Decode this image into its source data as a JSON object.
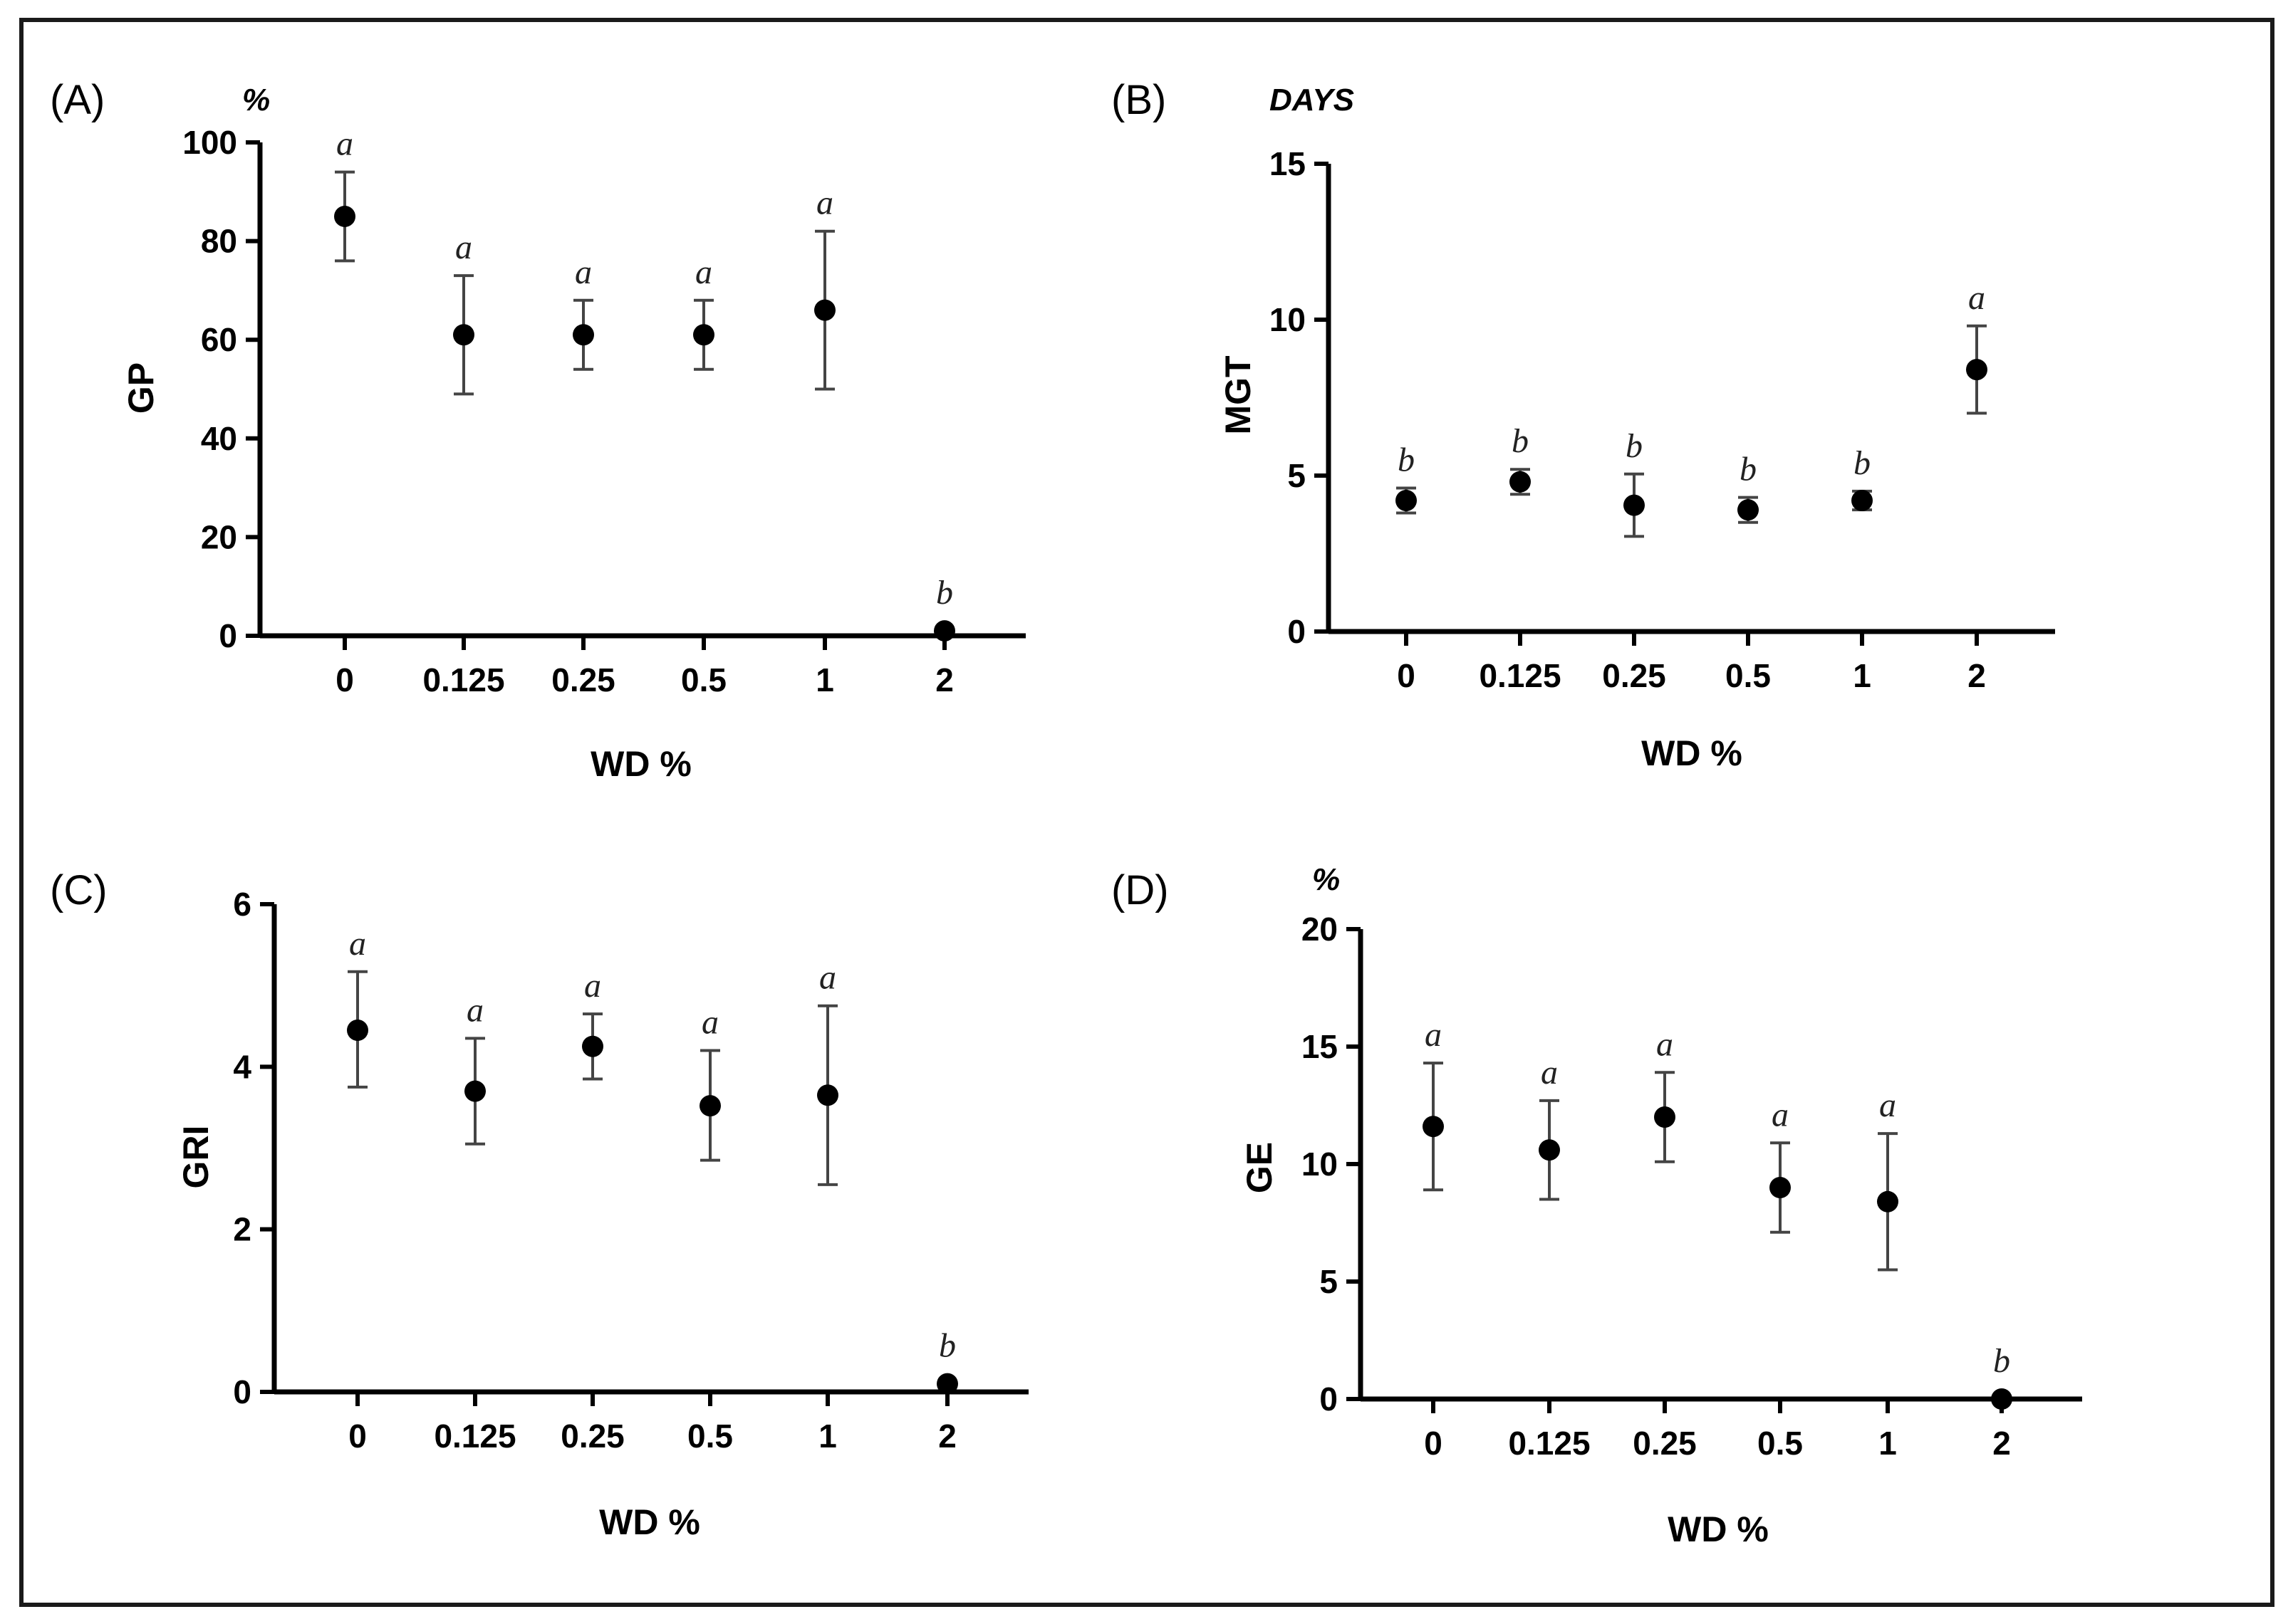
{
  "figure": {
    "border_color": "#1a1a1a"
  },
  "chart_data": [
    {
      "id": "A",
      "type": "scatter",
      "panel_label": "(A)",
      "unit": "%",
      "ylabel": "GP",
      "xlabel": "WD %",
      "categories": [
        "0",
        "0.125",
        "0.25",
        "0.5",
        "1",
        "2"
      ],
      "values": [
        85,
        61,
        61,
        61,
        66,
        1
      ],
      "error_low": [
        76,
        49,
        54,
        54,
        50,
        null
      ],
      "error_high": [
        94,
        73,
        68,
        68,
        82,
        null
      ],
      "letters": [
        "a",
        "a",
        "a",
        "a",
        "a",
        "b"
      ],
      "ylim": [
        0,
        100
      ],
      "yticks": [
        "0",
        "20",
        "40",
        "60",
        "80",
        "100"
      ],
      "grid": false
    },
    {
      "id": "B",
      "type": "scatter",
      "panel_label": "(B)",
      "unit": "DAYS",
      "ylabel": "MGT",
      "xlabel": "WD %",
      "categories": [
        "0",
        "0.125",
        "0.25",
        "0.5",
        "1",
        "2"
      ],
      "values": [
        4.2,
        4.8,
        4.05,
        3.9,
        4.2,
        8.4
      ],
      "error_low": [
        3.8,
        4.4,
        3.05,
        3.5,
        3.9,
        7.0
      ],
      "error_high": [
        4.6,
        5.2,
        5.05,
        4.3,
        4.5,
        9.8
      ],
      "letters": [
        "b",
        "b",
        "b",
        "b",
        "b",
        "a"
      ],
      "ylim": [
        0,
        15
      ],
      "yticks": [
        "0",
        "5",
        "10",
        "15"
      ],
      "grid": false
    },
    {
      "id": "C",
      "type": "scatter",
      "panel_label": "(C)",
      "unit": "",
      "ylabel": "GRI",
      "xlabel": "WD %",
      "categories": [
        "0",
        "0.125",
        "0.25",
        "0.5",
        "1",
        "2"
      ],
      "values": [
        4.45,
        3.7,
        4.25,
        3.52,
        3.65,
        0.1
      ],
      "error_low": [
        3.75,
        3.05,
        3.85,
        2.85,
        2.55,
        null
      ],
      "error_high": [
        5.17,
        4.35,
        4.65,
        4.2,
        4.75,
        null
      ],
      "letters": [
        "a",
        "a",
        "a",
        "a",
        "a",
        "b"
      ],
      "ylim": [
        0,
        6
      ],
      "yticks": [
        "0",
        "2",
        "4",
        "6"
      ],
      "grid": false
    },
    {
      "id": "D",
      "type": "scatter",
      "panel_label": "(D)",
      "unit": "%",
      "ylabel": "GE",
      "xlabel": "WD %",
      "categories": [
        "0",
        "0.125",
        "0.25",
        "0.5",
        "1",
        "2"
      ],
      "values": [
        11.6,
        10.6,
        12.0,
        9.0,
        8.4,
        0
      ],
      "error_low": [
        8.9,
        8.5,
        10.1,
        7.1,
        5.5,
        null
      ],
      "error_high": [
        14.3,
        12.7,
        13.9,
        10.9,
        11.3,
        null
      ],
      "letters": [
        "a",
        "a",
        "a",
        "a",
        "a",
        "b"
      ],
      "ylim": [
        0,
        20
      ],
      "yticks": [
        "0",
        "5",
        "10",
        "15",
        "20"
      ],
      "grid": false
    }
  ]
}
